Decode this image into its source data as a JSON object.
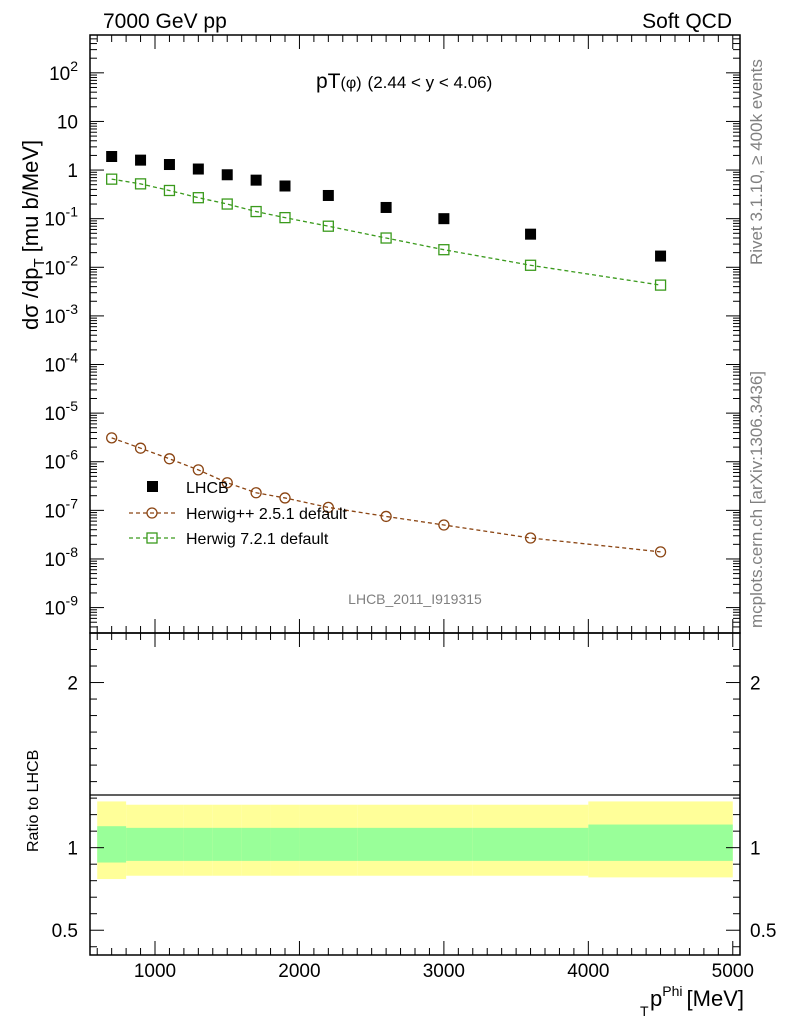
{
  "header": {
    "left": "7000 GeV pp",
    "right": "Soft QCD"
  },
  "side": {
    "rivet": "Rivet 3.1.10, ≥ 400k events",
    "mcplots": "mcplots.cern.ch [arXiv:1306.3436]"
  },
  "chart_data": {
    "type": "scatter",
    "title": "pT(φ) (2.44 < y < 4.06)",
    "title_main": "pT",
    "title_sub": "(φ)",
    "title_rest": "(2.44 < y < 4.06)",
    "analysis_id": "LHCB_2011_I919315",
    "ylabel": "dσ /dp_T [mu b/MeV]",
    "ylabel_main": "dσ /dp",
    "ylabel_sub": "T",
    "ylabel_unit": "[mu b/MeV]",
    "xlabel": "p_T^Phi [MeV]",
    "xlabel_p": "p",
    "xlabel_sup": "Phi",
    "xlabel_sub": "T",
    "xlabel_unit": "[MeV]",
    "ratio_ylabel": "Ratio to LHCB",
    "xlim": [
      550,
      5050
    ],
    "ylim_log": [
      3e-10,
      600
    ],
    "ratio_ylim": [
      0.35,
      2.3
    ],
    "x_ticks": [
      1000,
      2000,
      3000,
      4000,
      5000
    ],
    "x_tick_labels": [
      "1000",
      "2000",
      "3000",
      "4000",
      "5000"
    ],
    "y_tick_exponents": [
      -9,
      -8,
      -7,
      -6,
      -5,
      -4,
      -3,
      -2,
      -1,
      0,
      1,
      2
    ],
    "y_tick_labels": [
      "10^-9",
      "10^-8",
      "10^-7",
      "10^-6",
      "10^-5",
      "10^-4",
      "10^-3",
      "10^-2",
      "10^-1",
      "1",
      "10",
      "10^2"
    ],
    "ratio_ticks": [
      0.5,
      1,
      2
    ],
    "ratio_tick_labels": [
      "0.5",
      "1",
      "2"
    ],
    "x": [
      700,
      900,
      1100,
      1300,
      1500,
      1700,
      1900,
      2200,
      2600,
      3000,
      3600,
      4500
    ],
    "x_edges": [
      600,
      800,
      1000,
      1200,
      1400,
      1600,
      1800,
      2000,
      2400,
      2800,
      3200,
      4000,
      5000
    ],
    "series": [
      {
        "name": "LHCB",
        "marker": "filled-square",
        "color": "#000000",
        "values": [
          1.9,
          1.6,
          1.3,
          1.05,
          0.8,
          0.62,
          0.47,
          0.3,
          0.17,
          0.1,
          0.048,
          0.017
        ]
      },
      {
        "name": "Herwig++ 2.5.1 default",
        "marker": "open-circle",
        "line": "dashed",
        "color": "#8b4513",
        "values": [
          3.1e-06,
          1.9e-06,
          1.15e-06,
          6.8e-07,
          3.7e-07,
          2.3e-07,
          1.8e-07,
          1.15e-07,
          7.5e-08,
          5e-08,
          2.7e-08,
          1.4e-08
        ]
      },
      {
        "name": "Herwig 7.2.1 default",
        "marker": "open-square",
        "line": "dashed",
        "color": "#3a9a1c",
        "values": [
          0.65,
          0.52,
          0.38,
          0.27,
          0.2,
          0.14,
          0.105,
          0.07,
          0.04,
          0.023,
          0.011,
          0.0043
        ]
      }
    ],
    "ratio_bands": {
      "inner_color": "#99ff99",
      "outer_color": "#ffff99",
      "inner": [
        [
          0.91,
          1.13
        ],
        [
          0.92,
          1.12
        ],
        [
          0.92,
          1.12
        ],
        [
          0.92,
          1.12
        ],
        [
          0.92,
          1.12
        ],
        [
          0.92,
          1.12
        ],
        [
          0.92,
          1.12
        ],
        [
          0.92,
          1.12
        ],
        [
          0.92,
          1.12
        ],
        [
          0.92,
          1.12
        ],
        [
          0.92,
          1.12
        ],
        [
          0.92,
          1.14
        ]
      ],
      "outer": [
        [
          0.81,
          1.28
        ],
        [
          0.83,
          1.26
        ],
        [
          0.83,
          1.26
        ],
        [
          0.83,
          1.26
        ],
        [
          0.83,
          1.26
        ],
        [
          0.83,
          1.26
        ],
        [
          0.83,
          1.26
        ],
        [
          0.83,
          1.26
        ],
        [
          0.83,
          1.26
        ],
        [
          0.83,
          1.26
        ],
        [
          0.83,
          1.26
        ],
        [
          0.82,
          1.28
        ]
      ]
    },
    "legend_position": "lower-left"
  }
}
